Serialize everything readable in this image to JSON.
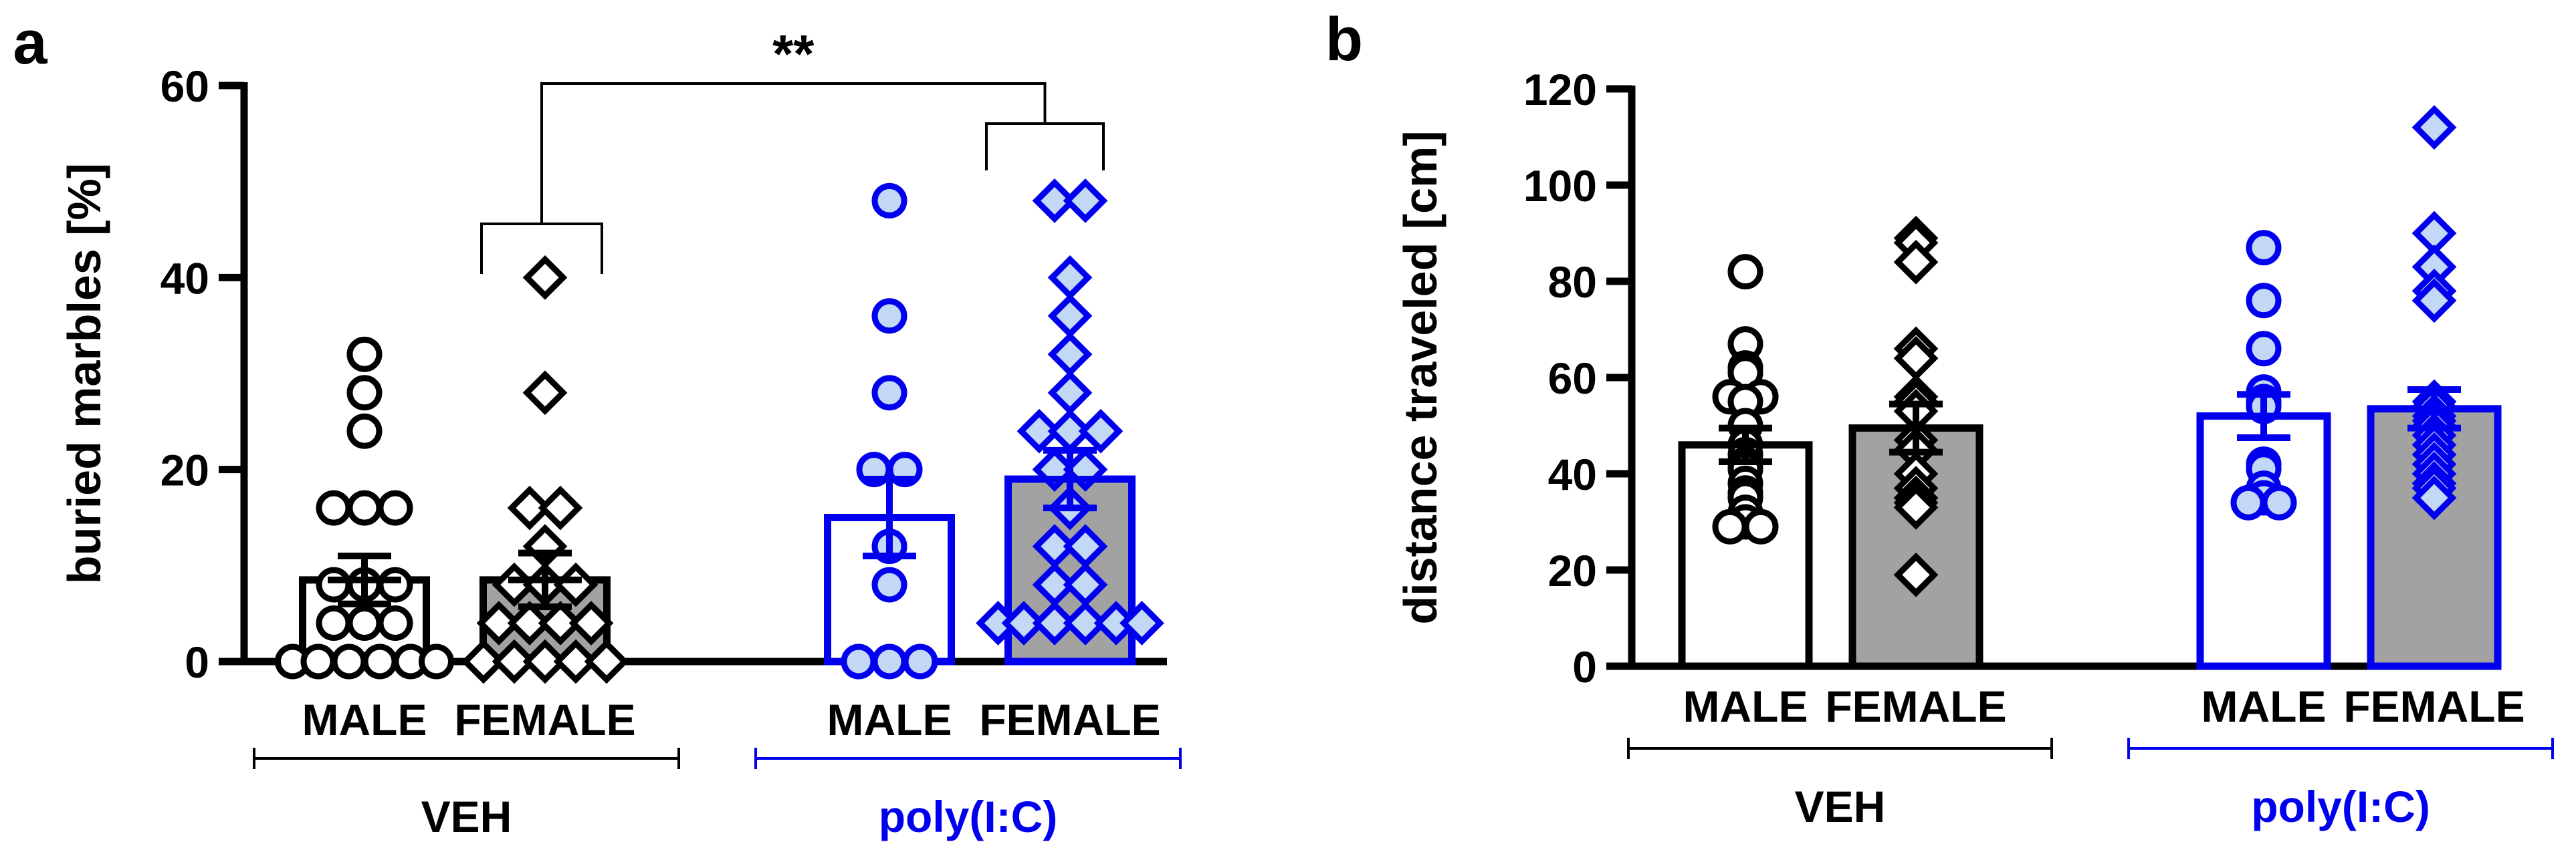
{
  "colors": {
    "veh": "#000000",
    "polyic": "#0000ee",
    "male_fill_veh": "#ffffff",
    "female_fill_veh": "#a2a2a2",
    "male_fill_polyic": "#ffffff",
    "female_fill_polyic": "#a2a2a2",
    "point_fill_veh": "#ffffff",
    "point_fill_polyic": "#c2d8f4"
  },
  "chart_data": [
    {
      "type": "bar",
      "panel_label": "a",
      "ylabel": "buried marbles  [%]",
      "ylim": [
        0,
        60
      ],
      "yticks": [
        "0",
        "20",
        "40",
        "60"
      ],
      "group_labels": [
        "VEH",
        "poly(I:C)"
      ],
      "sex_labels": [
        "MALE",
        "FEMALE",
        "MALE",
        "FEMALE"
      ],
      "significance": "**",
      "bars": [
        {
          "group": "VEH",
          "sex": "MALE",
          "mean": 8.5,
          "sem": 2.5,
          "points": [
            32,
            28,
            24,
            16,
            16,
            16,
            8,
            8,
            8,
            4,
            4,
            4,
            0,
            0,
            0,
            0,
            0,
            0
          ]
        },
        {
          "group": "VEH",
          "sex": "FEMALE",
          "mean": 8.5,
          "sem": 2.8,
          "points": [
            40,
            28,
            16,
            16,
            12,
            8,
            8,
            8,
            4,
            4,
            4,
            4,
            0,
            0,
            0,
            0,
            0
          ]
        },
        {
          "group": "poly(I:C)",
          "sex": "MALE",
          "mean": 15,
          "sem": 4,
          "points": [
            48,
            36,
            28,
            20,
            20,
            12,
            8,
            0,
            0,
            0
          ]
        },
        {
          "group": "poly(I:C)",
          "sex": "FEMALE",
          "mean": 19,
          "sem": 3,
          "points": [
            48,
            48,
            40,
            36,
            32,
            28,
            24,
            24,
            24,
            20,
            20,
            16,
            12,
            12,
            8,
            8,
            4,
            4,
            4,
            4,
            4,
            4
          ]
        }
      ]
    },
    {
      "type": "bar",
      "panel_label": "b",
      "ylabel": "distance traveled [cm]",
      "ylim": [
        0,
        120
      ],
      "yticks": [
        "0",
        "20",
        "40",
        "60",
        "80",
        "100",
        "120"
      ],
      "group_labels": [
        "VEH",
        "poly(I:C)"
      ],
      "sex_labels": [
        "MALE",
        "FEMALE",
        "MALE",
        "FEMALE"
      ],
      "bars": [
        {
          "group": "VEH",
          "sex": "MALE",
          "mean": 46,
          "sem": 3.5,
          "points": [
            82,
            67,
            62,
            61,
            56,
            56,
            55,
            50,
            46,
            44,
            42,
            41,
            38,
            36,
            35,
            32,
            30,
            29,
            29
          ]
        },
        {
          "group": "VEH",
          "sex": "FEMALE",
          "mean": 49.5,
          "sem": 5,
          "points": [
            89,
            88,
            84,
            66,
            64,
            56,
            55,
            53,
            47,
            45,
            40,
            37,
            35,
            34,
            33,
            19
          ]
        },
        {
          "group": "poly(I:C)",
          "sex": "MALE",
          "mean": 52,
          "sem": 4.5,
          "points": [
            87,
            76,
            66,
            57,
            55,
            54,
            42,
            41,
            37,
            35,
            34,
            34
          ]
        },
        {
          "group": "poly(I:C)",
          "sex": "FEMALE",
          "mean": 53.5,
          "sem": 4,
          "points": [
            112,
            90,
            83,
            78,
            76,
            55,
            54,
            52,
            51,
            50,
            48,
            46,
            44,
            42,
            40,
            38,
            37,
            35
          ]
        }
      ]
    }
  ]
}
